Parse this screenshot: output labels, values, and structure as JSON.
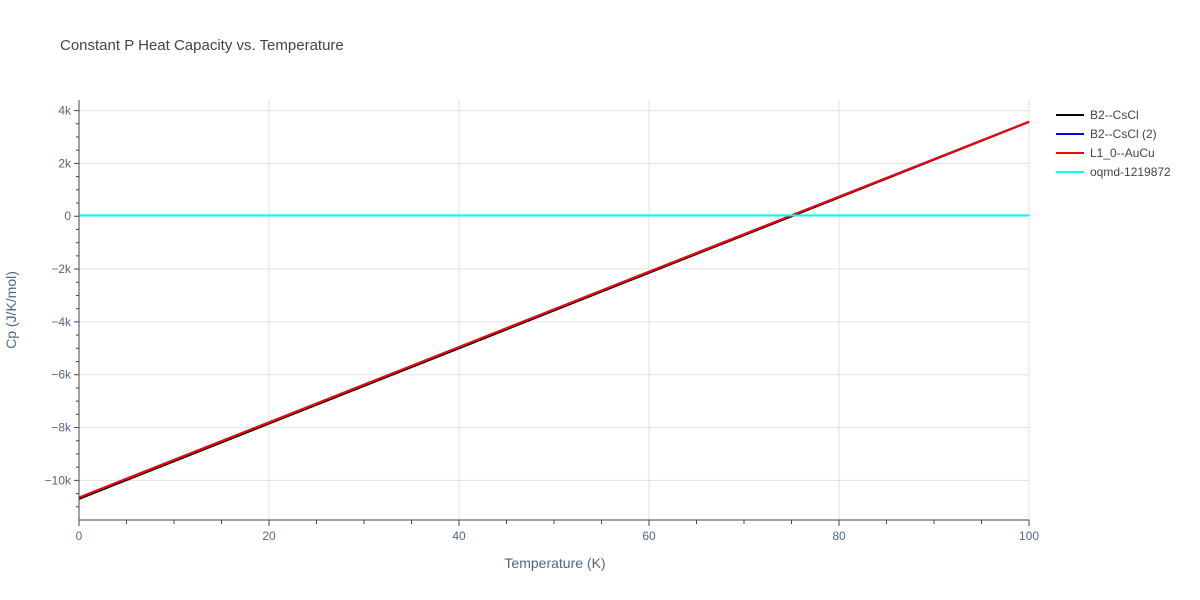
{
  "chart_data": {
    "type": "line",
    "title": "Constant P Heat Capacity vs. Temperature",
    "xlabel": "Temperature (K)",
    "ylabel": "Cp (J/K/mol)",
    "xlim": [
      0,
      100
    ],
    "ylim": [
      -11500,
      4400
    ],
    "x_ticks": [
      {
        "value": 0,
        "label": "0"
      },
      {
        "value": 20,
        "label": "20"
      },
      {
        "value": 40,
        "label": "40"
      },
      {
        "value": 60,
        "label": "60"
      },
      {
        "value": 80,
        "label": "80"
      },
      {
        "value": 100,
        "label": "100"
      }
    ],
    "y_ticks": [
      {
        "value": 4000,
        "label": "4k"
      },
      {
        "value": 2000,
        "label": "2k"
      },
      {
        "value": 0,
        "label": "0"
      },
      {
        "value": -2000,
        "label": "−2k"
      },
      {
        "value": -4000,
        "label": "−4k"
      },
      {
        "value": -6000,
        "label": "−6k"
      },
      {
        "value": -8000,
        "label": "−8k"
      },
      {
        "value": -10000,
        "label": "−10k"
      }
    ],
    "grid": true,
    "legend_position": "right",
    "series": [
      {
        "name": "B2--CsCl",
        "color": "#000000",
        "x": [
          0,
          20,
          40,
          60,
          80,
          100
        ],
        "y": [
          -10700,
          -7850,
          -5000,
          -2140,
          710,
          3570
        ]
      },
      {
        "name": "B2--CsCl (2)",
        "color": "#0000ff",
        "x": [
          0,
          20,
          40,
          60,
          80,
          100
        ],
        "y": [
          -10650,
          -7800,
          -4950,
          -2100,
          740,
          3580
        ]
      },
      {
        "name": "L1_0--AuCu",
        "color": "#ff0000",
        "x": [
          0,
          20,
          40,
          60,
          80,
          100
        ],
        "y": [
          -10650,
          -7800,
          -4950,
          -2100,
          740,
          3580
        ]
      },
      {
        "name": "oqmd-1219872",
        "color": "#00ffff",
        "x": [
          0,
          20,
          40,
          60,
          80,
          100
        ],
        "y": [
          30,
          30,
          30,
          30,
          30,
          30
        ]
      }
    ]
  }
}
